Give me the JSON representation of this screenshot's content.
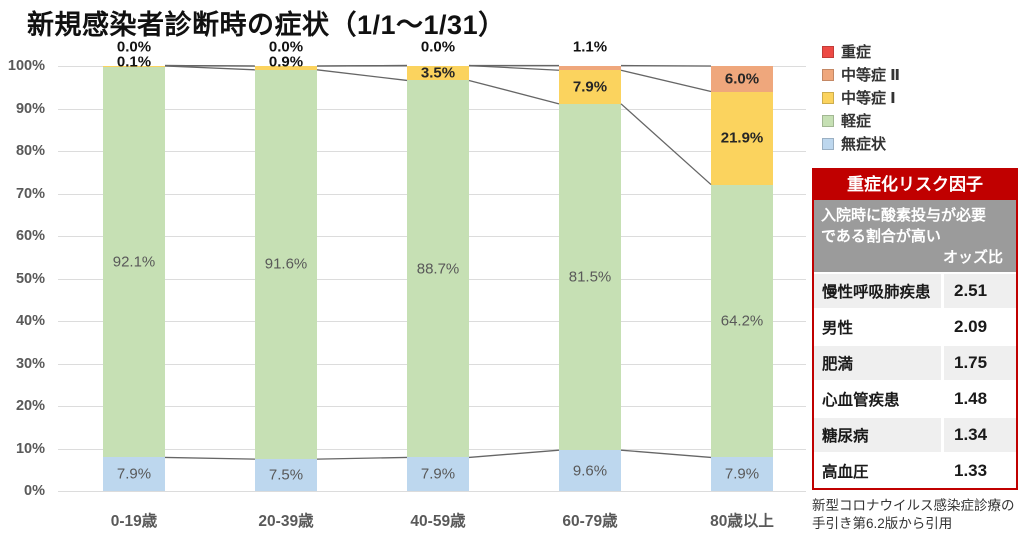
{
  "chart_data": {
    "type": "bar",
    "stacked": true,
    "percent": true,
    "title": "新規感染者診断時の症状（1/1～1/31）",
    "categories": [
      "0-19歳",
      "20-39歳",
      "40-59歳",
      "60-79歳",
      "80歳以上"
    ],
    "series": [
      {
        "name": "無症状",
        "color": "#BDD7EE",
        "label_mode": "inside",
        "values": [
          7.9,
          7.5,
          7.9,
          9.6,
          7.9
        ]
      },
      {
        "name": "軽症",
        "color": "#C6E0B4",
        "label_mode": "inside",
        "values": [
          92.1,
          91.6,
          88.7,
          81.5,
          64.2
        ]
      },
      {
        "name": "中等症 Ⅰ",
        "color": "#FBD35E",
        "label_mode": "auto",
        "values": [
          0.1,
          0.9,
          3.5,
          7.9,
          21.9
        ]
      },
      {
        "name": "中等症 Ⅱ",
        "color": "#EFA77C",
        "label_mode": "auto",
        "values": [
          0.0,
          0.0,
          0.0,
          1.1,
          6.0
        ]
      },
      {
        "name": "重症",
        "color": "#ED4A45",
        "label_mode": "none",
        "values": [
          0.0,
          0.0,
          0.0,
          0.0,
          0.0
        ]
      }
    ],
    "ylim": [
      0,
      100
    ],
    "yticks": [
      "0%",
      "10%",
      "20%",
      "30%",
      "40%",
      "50%",
      "60%",
      "70%",
      "80%",
      "90%",
      "100%"
    ],
    "grid": true,
    "connector_lines": true,
    "legend_position": "top-right",
    "legend_order": [
      "重症",
      "中等症 Ⅱ",
      "中等症 Ⅰ",
      "軽症",
      "無症状"
    ]
  },
  "risk_table": {
    "title": "重症化リスク因子",
    "note": "入院時に酸素投与が必要である割合が高い",
    "value_header": "オッズ比",
    "rows": [
      {
        "label": "慢性呼吸肺疾患",
        "value": "2.51"
      },
      {
        "label": "男性",
        "value": "2.09"
      },
      {
        "label": "肥満",
        "value": "1.75"
      },
      {
        "label": "心血管疾患",
        "value": "1.48"
      },
      {
        "label": "糖尿病",
        "value": "1.34"
      },
      {
        "label": "高血圧",
        "value": "1.33"
      }
    ],
    "colors": {
      "header_bg": "#C00000",
      "note_bg": "#9B9B9B",
      "row_alt_bg": "#EFEFEF",
      "border": "#C00000"
    }
  },
  "source_note": {
    "line1": "新型コロナウイルス感染症診療の",
    "line2": "手引き第6.2版から引用"
  }
}
